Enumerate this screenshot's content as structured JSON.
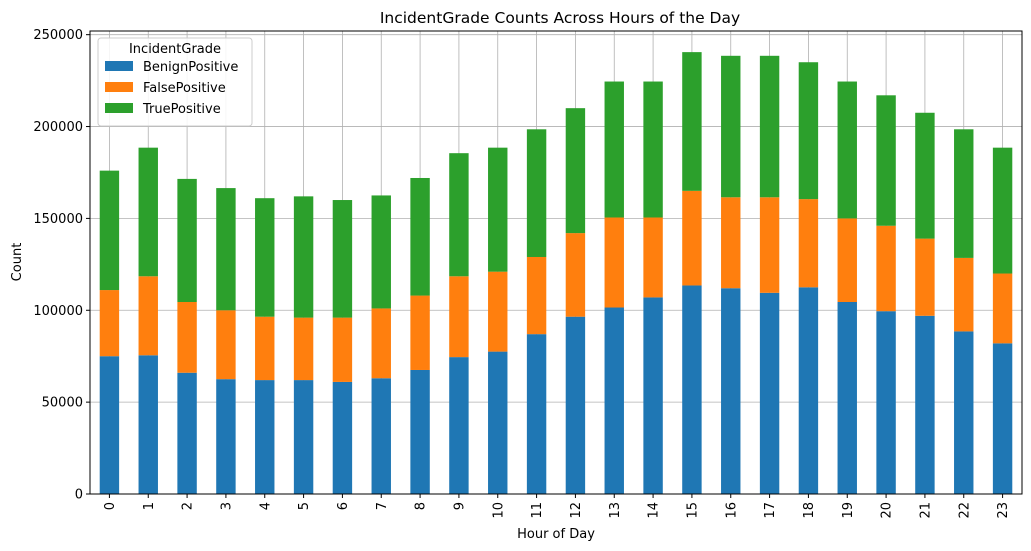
{
  "chart_data": {
    "type": "bar",
    "stacked": true,
    "title": "IncidentGrade Counts Across Hours of the Day",
    "xlabel": "Hour of Day",
    "ylabel": "Count",
    "categories": [
      "0",
      "1",
      "2",
      "3",
      "4",
      "5",
      "6",
      "7",
      "8",
      "9",
      "10",
      "11",
      "12",
      "13",
      "14",
      "15",
      "16",
      "17",
      "18",
      "19",
      "20",
      "21",
      "22",
      "23"
    ],
    "ylim": [
      0,
      252000
    ],
    "yticks": [
      0,
      50000,
      100000,
      150000,
      200000,
      250000
    ],
    "ytick_labels": [
      "0",
      "50000",
      "100000",
      "150000",
      "200000",
      "250000"
    ],
    "grid": true,
    "legend": {
      "title": "IncidentGrade",
      "placement": "top-left"
    },
    "series": [
      {
        "name": "BenignPositive",
        "color": "#1f77b4",
        "values": [
          75000,
          75500,
          66000,
          62500,
          62000,
          62000,
          61000,
          63000,
          67500,
          74500,
          77500,
          87000,
          96500,
          101500,
          107000,
          113500,
          112000,
          109500,
          112500,
          104500,
          99500,
          97000,
          88500,
          82000
        ]
      },
      {
        "name": "FalsePositive",
        "color": "#ff7f0e",
        "values": [
          36000,
          43000,
          38500,
          37500,
          34500,
          34000,
          35000,
          38000,
          40500,
          44000,
          43500,
          42000,
          45500,
          49000,
          43500,
          51500,
          49500,
          52000,
          48000,
          45500,
          46500,
          42000,
          40000,
          38000
        ]
      },
      {
        "name": "TruePositive",
        "color": "#2ca02c",
        "values": [
          65000,
          70000,
          67000,
          66500,
          64500,
          66000,
          64000,
          61500,
          64000,
          67000,
          67500,
          69500,
          68000,
          74000,
          74000,
          75500,
          77000,
          77000,
          74500,
          74500,
          71000,
          68500,
          70000,
          68500
        ]
      }
    ]
  }
}
